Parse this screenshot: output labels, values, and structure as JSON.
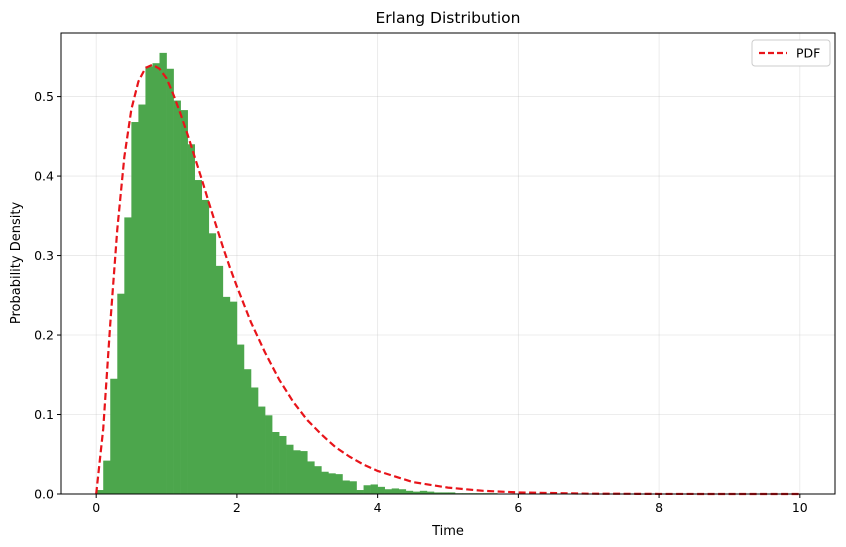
{
  "chart_data": {
    "type": "bar",
    "title": "Erlang Distribution",
    "xlabel": "Time",
    "ylabel": "Probability Density",
    "xlim": [
      -0.5,
      10.5
    ],
    "ylim": [
      0,
      0.58
    ],
    "xticks": [
      0,
      2,
      4,
      6,
      8,
      10
    ],
    "xtick_labels": [
      "0",
      "2",
      "4",
      "6",
      "8",
      "10"
    ],
    "yticks": [
      0.0,
      0.1,
      0.2,
      0.3,
      0.4,
      0.5
    ],
    "ytick_labels": [
      "0.0",
      "0.1",
      "0.2",
      "0.3",
      "0.4",
      "0.5"
    ],
    "grid": true,
    "legend_position": "top-right",
    "histogram": {
      "color": "#4ca64c",
      "bin_edges": [
        0.0,
        0.1,
        0.2,
        0.3,
        0.4,
        0.5,
        0.6,
        0.7,
        0.8,
        0.9,
        1.0,
        1.1,
        1.2,
        1.3,
        1.4,
        1.5,
        1.6,
        1.7,
        1.8,
        1.9,
        2.0,
        2.1,
        2.2,
        2.3,
        2.4,
        2.5,
        2.6,
        2.7,
        2.8,
        2.9,
        3.0,
        3.1,
        3.2,
        3.3,
        3.4,
        3.5,
        3.6,
        3.7,
        3.8,
        3.9,
        4.0,
        4.1,
        4.2,
        4.3,
        4.4,
        4.5,
        4.6,
        4.7,
        4.8,
        4.9,
        5.0,
        5.1,
        5.2,
        5.3,
        5.4,
        5.5,
        5.6,
        5.7,
        5.8,
        5.9,
        6.0
      ],
      "values": [
        0.005,
        0.042,
        0.145,
        0.252,
        0.348,
        0.468,
        0.49,
        0.538,
        0.542,
        0.555,
        0.535,
        0.495,
        0.483,
        0.44,
        0.395,
        0.37,
        0.328,
        0.287,
        0.248,
        0.242,
        0.188,
        0.157,
        0.134,
        0.11,
        0.099,
        0.078,
        0.073,
        0.062,
        0.055,
        0.054,
        0.041,
        0.035,
        0.028,
        0.026,
        0.025,
        0.017,
        0.016,
        0.005,
        0.011,
        0.012,
        0.009,
        0.006,
        0.007,
        0.006,
        0.004,
        0.003,
        0.004,
        0.003,
        0.002,
        0.002,
        0.002,
        0.001,
        0.001,
        0.001,
        0.001,
        0.001,
        0.001,
        0.0005,
        0.0005,
        0.0005
      ]
    },
    "series": [
      {
        "name": "PDF",
        "style": "dashed",
        "color": "#e8141a",
        "x": [
          0,
          0.1,
          0.2,
          0.3,
          0.4,
          0.5,
          0.6,
          0.7,
          0.8,
          0.9,
          1.0,
          1.1,
          1.2,
          1.3,
          1.4,
          1.5,
          1.6,
          1.7,
          1.8,
          1.9,
          2.0,
          2.2,
          2.4,
          2.6,
          2.8,
          3.0,
          3.2,
          3.4,
          3.6,
          3.8,
          4.0,
          4.5,
          5.0,
          5.5,
          6.0,
          7.0,
          8.0,
          9.0,
          10.0
        ],
        "y": [
          0,
          0.082,
          0.214,
          0.333,
          0.424,
          0.484,
          0.519,
          0.536,
          0.54,
          0.535,
          0.523,
          0.502,
          0.478,
          0.452,
          0.424,
          0.396,
          0.367,
          0.339,
          0.311,
          0.285,
          0.261,
          0.216,
          0.178,
          0.144,
          0.116,
          0.093,
          0.075,
          0.059,
          0.047,
          0.037,
          0.029,
          0.015,
          0.008,
          0.004,
          0.002,
          0.0004,
          0.0001,
          0.0,
          0.0
        ]
      }
    ],
    "legend": [
      {
        "label": "PDF"
      }
    ]
  }
}
